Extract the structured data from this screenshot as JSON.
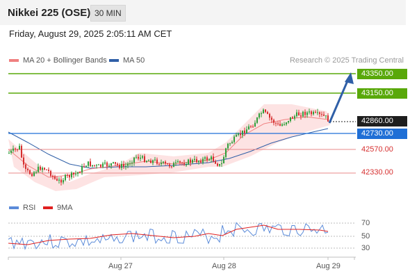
{
  "header": {
    "title": "Nikkei 225 (OSE)",
    "interval": "30 MIN"
  },
  "timestamp": "Friday, August 29, 2025 2:05:11 AM CET",
  "legend": {
    "items": [
      {
        "label": "MA 20 + Bollinger Bands",
        "color": "#f08080"
      },
      {
        "label": "MA 50",
        "color": "#2f5fa7"
      }
    ],
    "copyright": "Research © 2025 Trading Central"
  },
  "levels": [
    {
      "value": "43350.00",
      "kind": "resistance",
      "color": "#59a80a"
    },
    {
      "value": "43150.00",
      "kind": "resistance",
      "color": "#59a80a"
    },
    {
      "value": "42860.00",
      "kind": "last-price",
      "color": "#1e1e1e"
    },
    {
      "value": "42730.00",
      "kind": "pivot",
      "color": "#1f6fd6"
    },
    {
      "value": "42570.00",
      "kind": "support",
      "color": "#d62f2f"
    },
    {
      "value": "42330.00",
      "kind": "support",
      "color": "#d62f2f"
    }
  ],
  "rsi": {
    "legend": [
      {
        "label": "RSI",
        "color": "#5b8bd9"
      },
      {
        "label": "9MA",
        "color": "#e02020"
      }
    ],
    "levels": [
      "70",
      "50",
      "30"
    ]
  },
  "xaxis": {
    "labels": [
      "Aug 27",
      "Aug 28",
      "Aug 29"
    ]
  },
  "colors": {
    "bull": "#2e9e3a",
    "bear": "#d62f2f",
    "band": "#fde3e3"
  }
}
